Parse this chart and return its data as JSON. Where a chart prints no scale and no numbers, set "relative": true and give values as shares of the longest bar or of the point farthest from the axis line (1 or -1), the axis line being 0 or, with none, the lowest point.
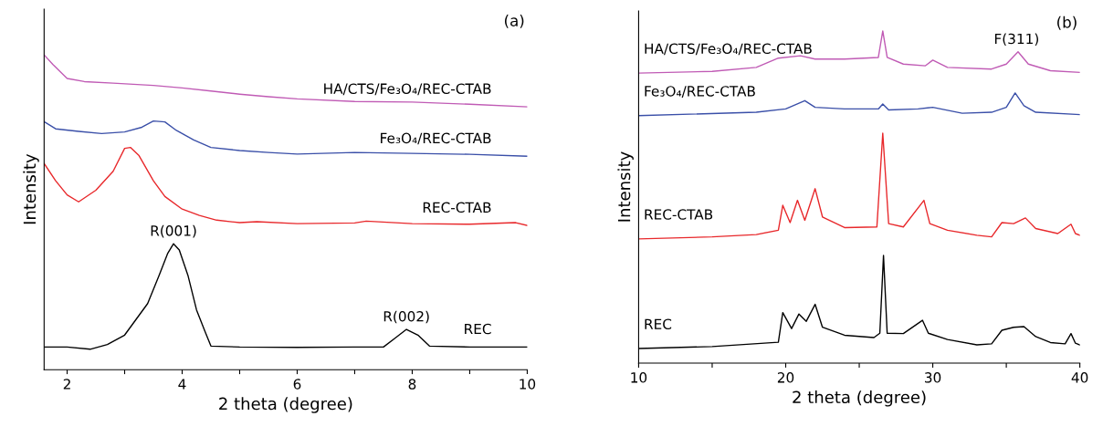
{
  "chart_data": [
    {
      "type": "line",
      "relative": true,
      "xlabel": "2 theta (degree)",
      "ylabel": "Intensity",
      "xlim": [
        1.6,
        10
      ],
      "xticks": [
        2,
        {
          "value": 3,
          "label": null
        },
        4,
        {
          "value": 5,
          "label": null
        },
        6,
        {
          "value": 7,
          "label": null
        },
        8,
        {
          "value": 9,
          "label": null
        },
        10
      ],
      "legend": false,
      "annotations": [
        "(a)",
        {
          "text": "R(001)",
          "x": 3.85,
          "y": 0.4
        },
        {
          "text": "R(002)",
          "x": 7.9,
          "y": 0.128
        }
      ],
      "series": [
        {
          "name": "REC",
          "color": "#000000",
          "x": [
            1.6,
            2.0,
            2.4,
            2.7,
            3.0,
            3.2,
            3.4,
            3.6,
            3.75,
            3.85,
            3.95,
            4.1,
            4.25,
            4.4,
            4.5,
            5,
            6,
            7,
            7.5,
            7.7,
            7.9,
            8.1,
            8.3,
            9,
            10
          ],
          "values": [
            0.072,
            0.072,
            0.065,
            0.08,
            0.11,
            0.16,
            0.21,
            0.3,
            0.37,
            0.4,
            0.38,
            0.3,
            0.19,
            0.12,
            0.075,
            0.072,
            0.071,
            0.072,
            0.072,
            0.1,
            0.128,
            0.11,
            0.075,
            0.072,
            0.072
          ]
        },
        {
          "name": "REC-CTAB",
          "color": "#e8282b",
          "x": [
            1.6,
            1.8,
            2.0,
            2.2,
            2.5,
            2.8,
            3.0,
            3.1,
            3.25,
            3.5,
            3.7,
            4.0,
            4.3,
            4.6,
            5,
            5.3,
            6,
            7,
            7.2,
            8,
            9,
            9.8,
            10
          ],
          "values": [
            0.655,
            0.6,
            0.555,
            0.533,
            0.57,
            0.63,
            0.703,
            0.706,
            0.68,
            0.6,
            0.55,
            0.51,
            0.49,
            0.475,
            0.467,
            0.47,
            0.464,
            0.466,
            0.472,
            0.464,
            0.462,
            0.467,
            0.458
          ]
        },
        {
          "name": "Fe₃O₄/REC-CTAB",
          "color": "#3a4fa8",
          "x": [
            1.6,
            1.8,
            2.2,
            2.6,
            3.0,
            3.3,
            3.5,
            3.7,
            3.9,
            4.2,
            4.5,
            5,
            5.5,
            6,
            7,
            8,
            9,
            10
          ],
          "values": [
            0.788,
            0.765,
            0.757,
            0.75,
            0.755,
            0.77,
            0.79,
            0.787,
            0.76,
            0.73,
            0.706,
            0.696,
            0.69,
            0.685,
            0.69,
            0.687,
            0.684,
            0.678
          ]
        },
        {
          "name": "HA/CTS/Fe₃O₄/REC-CTAB",
          "color": "#c05bb5",
          "x": [
            1.6,
            1.75,
            2.0,
            2.3,
            2.8,
            3.5,
            4,
            4.5,
            5,
            5.5,
            6,
            7,
            8,
            9,
            10
          ],
          "values": [
            1.0,
            0.97,
            0.925,
            0.915,
            0.91,
            0.903,
            0.895,
            0.885,
            0.875,
            0.867,
            0.86,
            0.852,
            0.85,
            0.843,
            0.835
          ]
        }
      ]
    },
    {
      "type": "line",
      "relative": true,
      "xlabel": "2 theta (degree)",
      "ylabel": "Intensity",
      "xlim": [
        10,
        40
      ],
      "xticks": [
        10,
        {
          "value": 15,
          "label": null
        },
        20,
        {
          "value": 25,
          "label": null
        },
        30,
        {
          "value": 35,
          "label": null
        },
        40
      ],
      "legend": false,
      "annotations": [
        "(b)",
        {
          "text": "F(311)",
          "x": 35.7,
          "y": 0.937
        }
      ],
      "series": [
        {
          "name": "REC",
          "color": "#000000",
          "x": [
            10,
            15,
            19.5,
            19.8,
            20.4,
            20.9,
            21.4,
            22.0,
            22.5,
            24,
            26,
            26.4,
            26.65,
            26.9,
            28,
            29.3,
            29.7,
            31,
            33,
            34,
            34.7,
            35.5,
            36.2,
            37,
            38,
            39,
            39.4,
            39.7,
            40
          ],
          "values": [
            0.044,
            0.05,
            0.063,
            0.152,
            0.104,
            0.148,
            0.126,
            0.177,
            0.108,
            0.084,
            0.077,
            0.09,
            0.324,
            0.09,
            0.089,
            0.129,
            0.09,
            0.071,
            0.055,
            0.058,
            0.099,
            0.108,
            0.11,
            0.08,
            0.062,
            0.058,
            0.089,
            0.06,
            0.055
          ]
        },
        {
          "name": "REC-CTAB",
          "color": "#e8282b",
          "x": [
            10,
            15,
            18,
            19.5,
            19.8,
            20.3,
            20.8,
            21.3,
            22,
            22.5,
            24,
            26.2,
            26.6,
            27,
            28,
            29.4,
            29.8,
            31,
            33,
            34,
            34.7,
            35.5,
            36.3,
            37,
            38.5,
            39.4,
            39.7,
            40
          ],
          "values": [
            0.374,
            0.38,
            0.387,
            0.4,
            0.475,
            0.423,
            0.49,
            0.43,
            0.525,
            0.44,
            0.408,
            0.41,
            0.692,
            0.42,
            0.41,
            0.49,
            0.42,
            0.4,
            0.385,
            0.38,
            0.423,
            0.42,
            0.437,
            0.405,
            0.39,
            0.418,
            0.39,
            0.385
          ]
        },
        {
          "name": "Fe₃O₄/REC-CTAB",
          "color": "#3a4fa8",
          "x": [
            10,
            18,
            20,
            21.3,
            22,
            24,
            26.3,
            26.6,
            27,
            29,
            30,
            32,
            34,
            35,
            35.6,
            36.2,
            37,
            40
          ],
          "values": [
            0.745,
            0.755,
            0.765,
            0.79,
            0.77,
            0.765,
            0.765,
            0.78,
            0.762,
            0.765,
            0.77,
            0.752,
            0.755,
            0.77,
            0.813,
            0.775,
            0.755,
            0.748
          ]
        },
        {
          "name": "HA/CTS/Fe₃O₄/REC-CTAB",
          "color": "#c05bb5",
          "x": [
            10,
            15,
            18,
            19.5,
            21,
            22,
            24,
            26.3,
            26.6,
            26.9,
            28,
            29.5,
            30,
            31,
            34,
            35,
            35.8,
            36.5,
            38,
            40
          ],
          "values": [
            0.873,
            0.878,
            0.89,
            0.918,
            0.925,
            0.915,
            0.915,
            0.92,
            1.0,
            0.92,
            0.9,
            0.895,
            0.912,
            0.89,
            0.885,
            0.9,
            0.937,
            0.9,
            0.88,
            0.875
          ]
        }
      ]
    }
  ]
}
